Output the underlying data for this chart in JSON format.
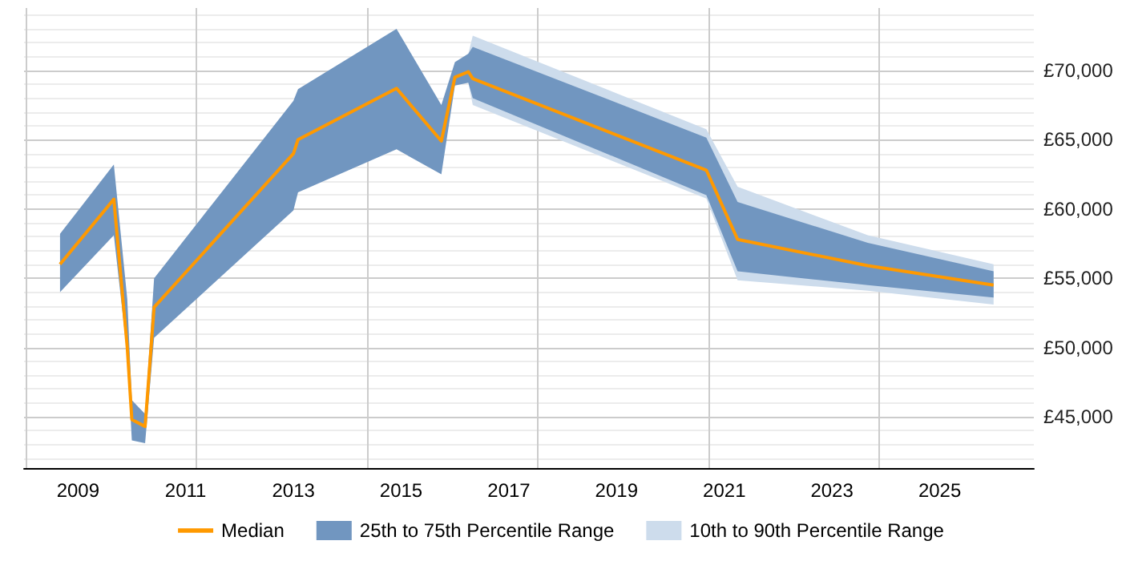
{
  "chart_data": {
    "type": "line",
    "x": [
      "2008-09",
      "2009-09",
      "2009-12",
      "2010-01",
      "2010-04",
      "2010-06",
      "2013-01",
      "2013-02",
      "2014-12",
      "2015-10",
      "2016-01",
      "2016-04",
      "2016-05",
      "2020-09",
      "2021-04",
      "2023-09",
      "2026-01"
    ],
    "series": [
      {
        "name": "Median",
        "color": "#ff9900",
        "values": [
          56000,
          60700,
          50000,
          44800,
          44300,
          52900,
          64000,
          65000,
          68700,
          64900,
          69500,
          69900,
          69400,
          62800,
          57800,
          55900,
          54500
        ]
      },
      {
        "name": "25th to 75th Percentile Range",
        "type": "area",
        "color": "#7196c0",
        "values": [
          null,
          null,
          null,
          null,
          null,
          null,
          null,
          null,
          null,
          null,
          null,
          null,
          null,
          null,
          null,
          null,
          null
        ],
        "lower": [
          54000,
          58100,
          49500,
          43300,
          43100,
          50700,
          59900,
          61200,
          64300,
          62500,
          68900,
          69100,
          68000,
          61000,
          55500,
          54500,
          53600
        ],
        "upper": [
          58200,
          63200,
          53500,
          46200,
          45200,
          55000,
          67800,
          68650,
          73000,
          67500,
          70600,
          71200,
          71700,
          65150,
          60500,
          57550,
          55500
        ]
      },
      {
        "name": "10th to 90th Percentile Range",
        "type": "area",
        "color": "#cddcec",
        "values": [
          null,
          null,
          null,
          null,
          null,
          null,
          null,
          null,
          null,
          null,
          null,
          null,
          null,
          null,
          null,
          null,
          null
        ],
        "lower": [
          null,
          null,
          null,
          null,
          null,
          null,
          null,
          null,
          null,
          null,
          null,
          69100,
          67500,
          60750,
          54850,
          54100,
          53100
        ],
        "upper": [
          null,
          null,
          null,
          null,
          null,
          null,
          null,
          null,
          null,
          null,
          null,
          71200,
          72500,
          65750,
          61600,
          58100,
          56000
        ]
      }
    ],
    "xlim": [
      "2008-01",
      "2026-10"
    ],
    "xticks": [
      {
        "value": "2009",
        "label": "2009"
      },
      {
        "value": "2011",
        "label": "2011"
      },
      {
        "value": "2013",
        "label": "2013"
      },
      {
        "value": "2015",
        "label": "2015"
      },
      {
        "value": "2017",
        "label": "2017"
      },
      {
        "value": "2019",
        "label": "2019"
      },
      {
        "value": "2021",
        "label": "2021"
      },
      {
        "value": "2023",
        "label": "2023"
      },
      {
        "value": "2025",
        "label": "2025"
      }
    ],
    "ylim": [
      41300,
      74500
    ],
    "yticks": [
      {
        "value": 45000,
        "label": "£45,000"
      },
      {
        "value": 50000,
        "label": "£50,000"
      },
      {
        "value": 55000,
        "label": "£55,000"
      },
      {
        "value": 60000,
        "label": "£60,000"
      },
      {
        "value": 65000,
        "label": "£65,000"
      },
      {
        "value": 70000,
        "label": "£70,000"
      }
    ],
    "grid": true,
    "legend": "bottom",
    "marker": "none",
    "line_style": "solid"
  }
}
